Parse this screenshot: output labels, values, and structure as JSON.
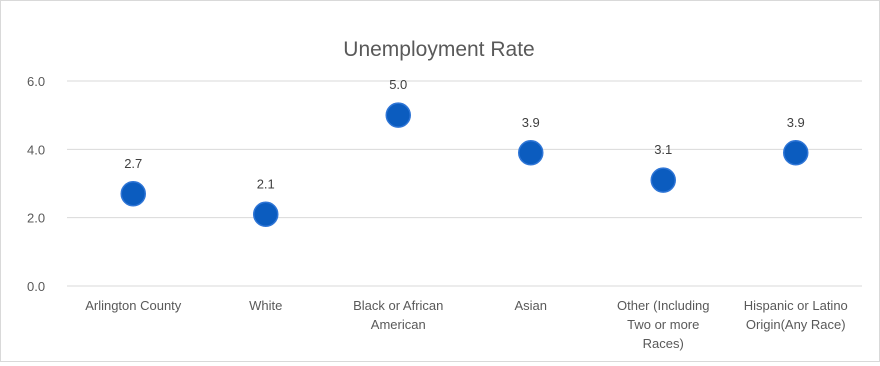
{
  "chart_data": {
    "type": "scatter",
    "title": "Unemployment Rate",
    "xlabel": "",
    "ylabel": "",
    "categories": [
      [
        "Arlington County"
      ],
      [
        "White"
      ],
      [
        "Black or African",
        "American"
      ],
      [
        "Asian"
      ],
      [
        "Other (Including",
        "Two or more",
        "Races)"
      ],
      [
        "Hispanic or Latino",
        "Origin(Any Race)"
      ]
    ],
    "values": [
      2.7,
      2.1,
      5.0,
      3.9,
      3.1,
      3.9
    ],
    "data_labels": [
      "2.7",
      "2.1",
      "5.0",
      "3.9",
      "3.1",
      "3.9"
    ],
    "y_ticks": [
      "0.0",
      "2.0",
      "4.0",
      "6.0"
    ],
    "y_tick_values": [
      0,
      2,
      4,
      6
    ],
    "ylim": [
      0,
      6
    ],
    "grid": true,
    "legend": "none",
    "marker_color": "#0b5cbf"
  }
}
